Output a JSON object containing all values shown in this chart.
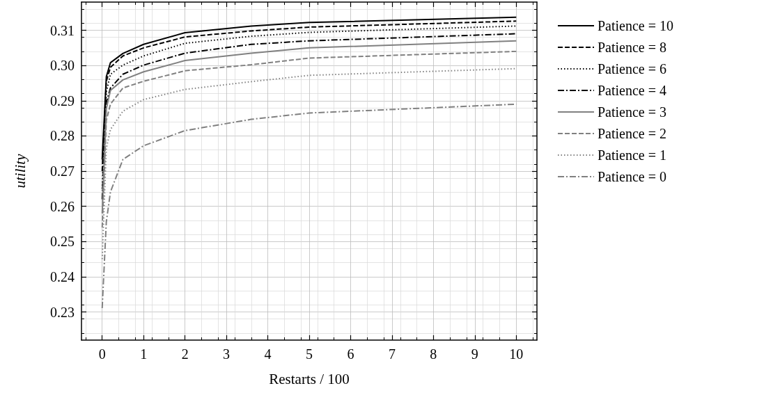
{
  "chart_data": {
    "type": "line",
    "xlabel": "Restarts / 100",
    "ylabel": "utility",
    "x": [
      0,
      0.1,
      0.2,
      0.5,
      1,
      2,
      3.6,
      5,
      10
    ],
    "series": [
      {
        "name": "Patience = 10",
        "color": "#000000",
        "line_style": "solid",
        "values": [
          0.2733,
          0.2968,
          0.3008,
          0.3034,
          0.306,
          0.3093,
          0.3112,
          0.3122,
          0.3137
        ]
      },
      {
        "name": "Patience = 8",
        "color": "#000000",
        "line_style": "dashed",
        "values": [
          0.27,
          0.2955,
          0.2995,
          0.3027,
          0.305,
          0.3081,
          0.3098,
          0.3109,
          0.3126
        ]
      },
      {
        "name": "Patience = 6",
        "color": "#000000",
        "line_style": "dotted",
        "values": [
          0.265,
          0.2925,
          0.2975,
          0.3001,
          0.3027,
          0.3063,
          0.3083,
          0.3094,
          0.3112
        ]
      },
      {
        "name": "Patience = 4",
        "color": "#000000",
        "line_style": "dashdot",
        "values": [
          0.262,
          0.2895,
          0.2936,
          0.2975,
          0.3001,
          0.3035,
          0.306,
          0.307,
          0.309
        ]
      },
      {
        "name": "Patience = 3",
        "color": "#808080",
        "line_style": "solid",
        "values": [
          0.258,
          0.2877,
          0.2929,
          0.2959,
          0.2982,
          0.3014,
          0.3035,
          0.305,
          0.307
        ]
      },
      {
        "name": "Patience = 2",
        "color": "#808080",
        "line_style": "dashed",
        "values": [
          0.254,
          0.2844,
          0.289,
          0.2936,
          0.2955,
          0.2985,
          0.3002,
          0.3021,
          0.304
        ]
      },
      {
        "name": "Patience = 1",
        "color": "#808080",
        "line_style": "dotted",
        "values": [
          0.245,
          0.2765,
          0.2818,
          0.287,
          0.2903,
          0.2932,
          0.2954,
          0.2972,
          0.2991
        ]
      },
      {
        "name": "Patience = 0",
        "color": "#808080",
        "line_style": "dashdot",
        "values": [
          0.2311,
          0.2556,
          0.2641,
          0.2733,
          0.2772,
          0.2815,
          0.2847,
          0.2865,
          0.289
        ]
      }
    ],
    "xlim": [
      -0.5,
      10.5
    ],
    "xticks": [
      0,
      1,
      2,
      3,
      4,
      5,
      6,
      7,
      8,
      9,
      10
    ],
    "ylim": [
      0.222,
      0.318
    ],
    "yticks": [
      0.23,
      0.24,
      0.25,
      0.26,
      0.27,
      0.28,
      0.29,
      {
        "value": 0.3,
        "label": "0.30"
      },
      0.31
    ],
    "grid": true,
    "legend": "right",
    "marker": "none"
  }
}
